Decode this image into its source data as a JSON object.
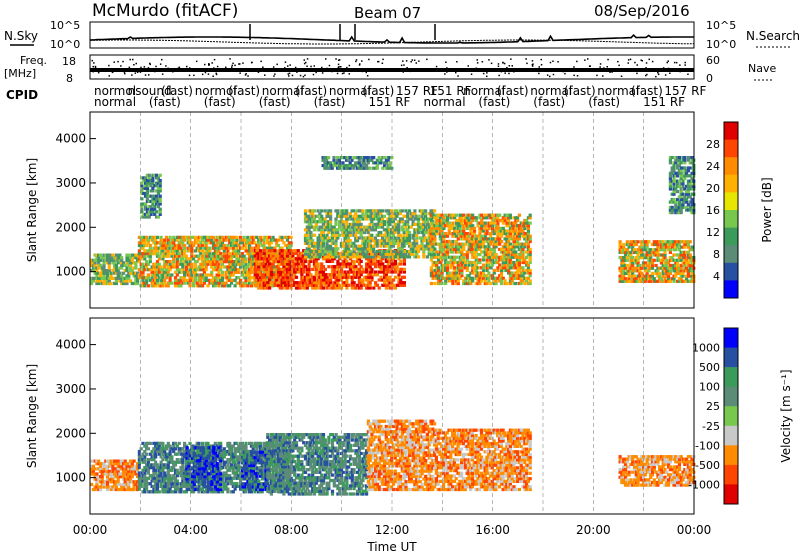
{
  "header": {
    "site": "McMurdo (fitACF)",
    "beam": "Beam 07",
    "date": "08/Sep/2016"
  },
  "top_panels": {
    "nsky_label": "N.Sky",
    "nsearch_label": "N.Search",
    "noise_ticks": [
      "10^5",
      "10^0"
    ],
    "freq_label": "Freq.",
    "freq_unit": "[MHz]",
    "freq_ticks": [
      "18",
      "8"
    ],
    "nave_label": "Nave",
    "nave_ticks": [
      "60",
      "0"
    ],
    "cpid_label": "CPID",
    "cpid_row1": [
      "normol",
      "nsound",
      "(fast)",
      "normol",
      "(fast)",
      "normal",
      "(fast)",
      "normal",
      "(fast)",
      "157 RF",
      "151 RF",
      "normal",
      "(fast)",
      "normal",
      "(fast)",
      "normal",
      "(fast)",
      "157 RF"
    ],
    "cpid_row2": [
      "normal",
      "(fast)",
      "(fast)",
      "(fast)",
      "(fast)",
      "151 RF",
      "normal",
      "(fast)",
      "(fast)",
      "(fast)",
      "151 RF"
    ]
  },
  "chart_data": [
    {
      "type": "heatmap",
      "name": "power",
      "ylabel": "Slant Range [km]",
      "xlabel": "",
      "x_range_hours": [
        0,
        24
      ],
      "ylim": [
        180,
        4600
      ],
      "yticks": [
        1000,
        2000,
        3000,
        4000
      ],
      "colorbar": {
        "label": "Power [dB]",
        "ticks": [
          "28",
          "24",
          "20",
          "16",
          "12",
          "8",
          "4"
        ],
        "colors": [
          "#e00000",
          "#ff4500",
          "#ff8c00",
          "#ffb000",
          "#e6e600",
          "#78c850",
          "#3c9b5a",
          "#5a8c78",
          "#2850a0",
          "#0000ff"
        ]
      },
      "bands": [
        {
          "t0": 0.0,
          "t1": 1.9,
          "r0": 700,
          "r1": 1400,
          "level": "mid"
        },
        {
          "t0": 1.9,
          "t1": 8.0,
          "r0": 650,
          "r1": 1800,
          "level": "mid-high"
        },
        {
          "t0": 2.0,
          "t1": 2.8,
          "r0": 2200,
          "r1": 3200,
          "level": "low"
        },
        {
          "t0": 6.5,
          "t1": 12.5,
          "r0": 600,
          "r1": 1500,
          "level": "high"
        },
        {
          "t0": 8.5,
          "t1": 13.7,
          "r0": 1300,
          "r1": 2400,
          "level": "mid"
        },
        {
          "t0": 9.2,
          "t1": 12.0,
          "r0": 3300,
          "r1": 3600,
          "level": "low"
        },
        {
          "t0": 13.5,
          "t1": 17.5,
          "r0": 700,
          "r1": 2300,
          "level": "mid-high"
        },
        {
          "t0": 21.0,
          "t1": 24.0,
          "r0": 750,
          "r1": 1700,
          "level": "mid-high"
        },
        {
          "t0": 23.0,
          "t1": 24.0,
          "r0": 2300,
          "r1": 3600,
          "level": "low"
        }
      ]
    },
    {
      "type": "heatmap",
      "name": "velocity",
      "ylabel": "Slant Range [km]",
      "xlabel": "Time UT",
      "x_range_hours": [
        0,
        24
      ],
      "ylim": [
        180,
        4600
      ],
      "yticks": [
        1000,
        2000,
        3000,
        4000
      ],
      "xticks": [
        "00:00",
        "04:00",
        "08:00",
        "12:00",
        "16:00",
        "20:00",
        "00:00"
      ],
      "colorbar": {
        "label": "Velocity [m s⁻¹]",
        "ticks": [
          "1000",
          "500",
          "100",
          "25",
          "-25",
          "-100",
          "-500",
          "-1000"
        ],
        "colors": [
          "#0000ff",
          "#2850a0",
          "#3c9b5a",
          "#5a8c78",
          "#78c850",
          "#c8c8c8",
          "#ff8c00",
          "#ff4500",
          "#e00000"
        ]
      },
      "bands": [
        {
          "t0": 0.0,
          "t1": 1.9,
          "r0": 700,
          "r1": 1400,
          "class": "orange"
        },
        {
          "t0": 1.9,
          "t1": 8.0,
          "r0": 650,
          "r1": 1800,
          "class": "green"
        },
        {
          "t0": 3.8,
          "t1": 5.2,
          "r0": 700,
          "r1": 1700,
          "class": "blue"
        },
        {
          "t0": 6.0,
          "t1": 7.0,
          "r0": 700,
          "r1": 1600,
          "class": "blue"
        },
        {
          "t0": 7.0,
          "t1": 11.0,
          "r0": 600,
          "r1": 2000,
          "class": "green"
        },
        {
          "t0": 11.0,
          "t1": 13.7,
          "r0": 700,
          "r1": 2300,
          "class": "orange"
        },
        {
          "t0": 13.7,
          "t1": 17.5,
          "r0": 700,
          "r1": 2100,
          "class": "orange"
        },
        {
          "t0": 21.0,
          "t1": 24.0,
          "r0": 800,
          "r1": 1500,
          "class": "orange"
        }
      ]
    }
  ]
}
